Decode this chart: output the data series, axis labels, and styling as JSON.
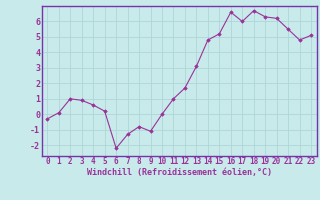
{
  "x": [
    0,
    1,
    2,
    3,
    4,
    5,
    6,
    7,
    8,
    9,
    10,
    11,
    12,
    13,
    14,
    15,
    16,
    17,
    18,
    19,
    20,
    21,
    22,
    23
  ],
  "y": [
    -0.3,
    0.1,
    1.0,
    0.9,
    0.6,
    0.2,
    -2.2,
    -1.3,
    -0.8,
    -1.1,
    0.0,
    1.0,
    1.7,
    3.1,
    4.8,
    5.2,
    6.6,
    6.0,
    6.7,
    6.3,
    6.2,
    5.5,
    4.8,
    5.1
  ],
  "line_color": "#993399",
  "marker": "D",
  "marker_size": 1.8,
  "background_color": "#c8eaea",
  "grid_color": "#aed6d6",
  "border_color": "#7733aa",
  "xlabel": "Windchill (Refroidissement éolien,°C)",
  "xlabel_color": "#993399",
  "tick_color": "#993399",
  "ylim": [
    -2.7,
    7.0
  ],
  "xlim": [
    -0.5,
    23.5
  ],
  "yticks": [
    -2,
    -1,
    0,
    1,
    2,
    3,
    4,
    5,
    6
  ],
  "xticks": [
    0,
    1,
    2,
    3,
    4,
    5,
    6,
    7,
    8,
    9,
    10,
    11,
    12,
    13,
    14,
    15,
    16,
    17,
    18,
    19,
    20,
    21,
    22,
    23
  ],
  "font_family": "monospace",
  "tick_fontsize": 5.5,
  "xlabel_fontsize": 6.0,
  "ytick_fontsize": 6.0
}
